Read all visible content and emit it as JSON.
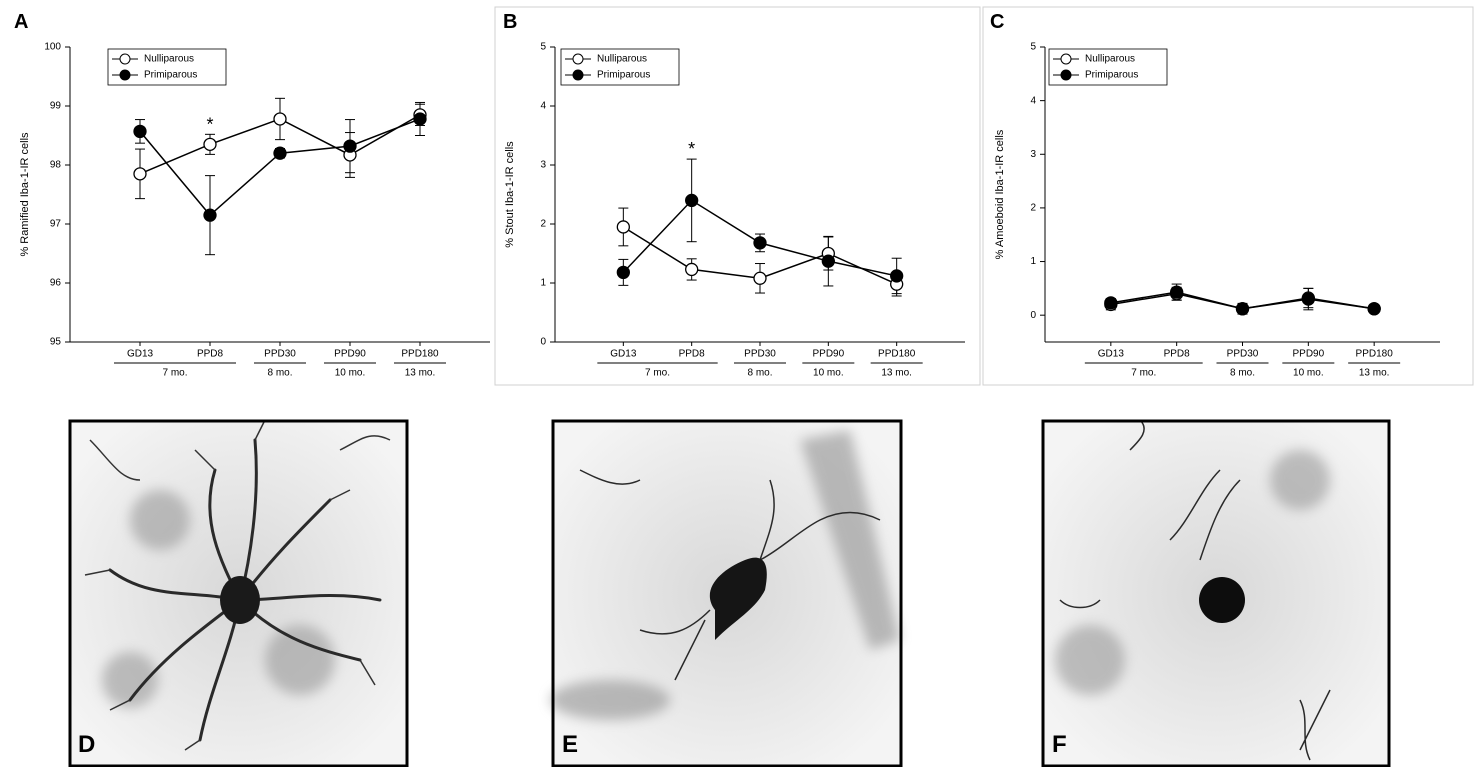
{
  "chart_data": [
    {
      "type": "line",
      "label": "A",
      "ylabel": "% Ramified Iba-1-IR cells",
      "categories": [
        "GD13",
        "PPD8",
        "PPD30",
        "PPD90",
        "PPD180"
      ],
      "groups": [
        {
          "label": "7 mo.",
          "categories": [
            "GD13",
            "PPD8"
          ]
        },
        {
          "label": "8 mo.",
          "categories": [
            "PPD30"
          ]
        },
        {
          "label": "10 mo.",
          "categories": [
            "PPD90"
          ]
        },
        {
          "label": "13 mo.",
          "categories": [
            "PPD180"
          ]
        }
      ],
      "series": [
        {
          "name": "Nulliparous",
          "color": "#000000",
          "marker_fill": "#ffffff",
          "values": [
            97.85,
            98.35,
            98.78,
            98.17,
            98.85
          ],
          "errors": [
            0.42,
            0.17,
            0.35,
            0.38,
            0.18
          ]
        },
        {
          "name": "Primiparous",
          "color": "#000000",
          "marker_fill": "#000000",
          "values": [
            98.57,
            97.15,
            98.2,
            98.32,
            98.78
          ],
          "errors": [
            0.2,
            0.67,
            0.08,
            0.45,
            0.28
          ]
        }
      ],
      "annotations": [
        {
          "text": "*",
          "x": "PPD8"
        }
      ],
      "ylim": [
        95,
        100
      ],
      "yticks": [
        95,
        96,
        97,
        98,
        99,
        100
      ],
      "legend": "upper left"
    },
    {
      "type": "line",
      "label": "B",
      "ylabel": "% Stout Iba-1-IR cells",
      "categories": [
        "GD13",
        "PPD8",
        "PPD30",
        "PPD90",
        "PPD180"
      ],
      "groups": [
        {
          "label": "7 mo.",
          "categories": [
            "GD13",
            "PPD8"
          ]
        },
        {
          "label": "8 mo.",
          "categories": [
            "PPD30"
          ]
        },
        {
          "label": "10 mo.",
          "categories": [
            "PPD90"
          ]
        },
        {
          "label": "13 mo.",
          "categories": [
            "PPD180"
          ]
        }
      ],
      "series": [
        {
          "name": "Nulliparous",
          "color": "#000000",
          "marker_fill": "#ffffff",
          "values": [
            1.95,
            1.23,
            1.08,
            1.5,
            0.98
          ],
          "errors": [
            0.32,
            0.18,
            0.25,
            0.28,
            0.2
          ]
        },
        {
          "name": "Primiparous",
          "color": "#000000",
          "marker_fill": "#000000",
          "values": [
            1.18,
            2.4,
            1.68,
            1.37,
            1.12
          ],
          "errors": [
            0.22,
            0.7,
            0.15,
            0.42,
            0.3
          ]
        }
      ],
      "annotations": [
        {
          "text": "*",
          "x": "PPD8"
        }
      ],
      "ylim": [
        0,
        5
      ],
      "yticks": [
        0,
        1,
        2,
        3,
        4,
        5
      ],
      "legend": "upper left"
    },
    {
      "type": "line",
      "label": "C",
      "ylabel": "% Amoeboid Iba-1-IR cells",
      "categories": [
        "GD13",
        "PPD8",
        "PPD30",
        "PPD90",
        "PPD180"
      ],
      "groups": [
        {
          "label": "7 mo.",
          "categories": [
            "GD13",
            "PPD8"
          ]
        },
        {
          "label": "8 mo.",
          "categories": [
            "PPD30"
          ]
        },
        {
          "label": "10 mo.",
          "categories": [
            "PPD90"
          ]
        },
        {
          "label": "13 mo.",
          "categories": [
            "PPD180"
          ]
        }
      ],
      "series": [
        {
          "name": "Nulliparous",
          "color": "#000000",
          "marker_fill": "#ffffff",
          "values": [
            0.2,
            0.4,
            0.12,
            0.32,
            0.12
          ],
          "errors": [
            0.1,
            0.12,
            0.08,
            0.18,
            0.05
          ]
        },
        {
          "name": "Primiparous",
          "color": "#000000",
          "marker_fill": "#000000",
          "values": [
            0.23,
            0.43,
            0.12,
            0.3,
            0.12
          ],
          "errors": [
            0.08,
            0.15,
            0.1,
            0.2,
            0.05
          ]
        }
      ],
      "annotations": [],
      "ylim": [
        -0.5,
        5
      ],
      "yticks": [
        0,
        1,
        2,
        3,
        4,
        5
      ],
      "legend": "upper left"
    }
  ],
  "images": [
    {
      "label": "D"
    },
    {
      "label": "E"
    },
    {
      "label": "F"
    }
  ]
}
